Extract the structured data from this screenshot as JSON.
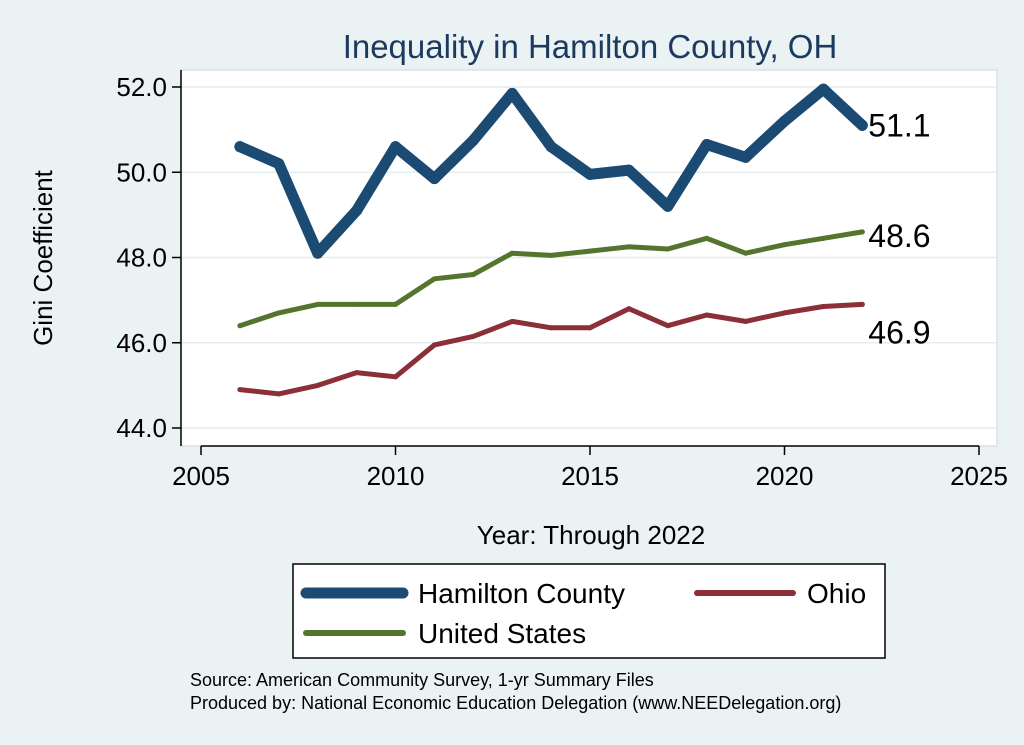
{
  "chart_data": {
    "type": "line",
    "title": "Inequality in Hamilton County, OH",
    "xlabel": "Year: Through 2022",
    "ylabel": "Gini Coefficient",
    "xlim": [
      2005,
      2025
    ],
    "ylim": [
      44,
      52
    ],
    "xticks": [
      2005,
      2010,
      2015,
      2020,
      2025
    ],
    "yticks": [
      44,
      46,
      48,
      50,
      52
    ],
    "ytick_labels": [
      "44.0",
      "46.0",
      "48.0",
      "50.0",
      "52.0"
    ],
    "grid": true,
    "x": [
      2006,
      2007,
      2008,
      2009,
      2010,
      2011,
      2012,
      2013,
      2014,
      2015,
      2016,
      2017,
      2018,
      2019,
      2020,
      2021,
      2022
    ],
    "series": [
      {
        "name": "Hamilton County",
        "color": "#1b4b73",
        "width": 11,
        "values": [
          50.6,
          50.2,
          48.1,
          49.1,
          50.6,
          49.85,
          50.75,
          51.85,
          50.6,
          49.95,
          50.05,
          49.2,
          50.65,
          50.35,
          51.2,
          51.95,
          51.1
        ],
        "end_label": "51.1"
      },
      {
        "name": "United States",
        "color": "#55752f",
        "width": 5,
        "values": [
          46.4,
          46.7,
          46.9,
          46.9,
          46.9,
          47.5,
          47.6,
          48.1,
          48.05,
          48.15,
          48.25,
          48.2,
          48.45,
          48.1,
          48.3,
          48.45,
          48.6
        ],
        "end_label": "48.6"
      },
      {
        "name": "Ohio",
        "color": "#8c2f39",
        "width": 5,
        "values": [
          44.9,
          44.8,
          45.0,
          45.3,
          45.2,
          45.95,
          46.15,
          46.5,
          46.35,
          46.35,
          46.8,
          46.4,
          46.65,
          46.5,
          46.7,
          46.85,
          46.9
        ],
        "end_label": "46.9"
      }
    ],
    "legend": {
      "position": "bottom",
      "entries": [
        "Hamilton County",
        "Ohio",
        "United States"
      ]
    }
  },
  "notes": {
    "source": "Source: American Community Survey, 1-yr Summary Files",
    "producer": "Produced by: National Economic Education Delegation (www.NEEDelegation.org)"
  }
}
